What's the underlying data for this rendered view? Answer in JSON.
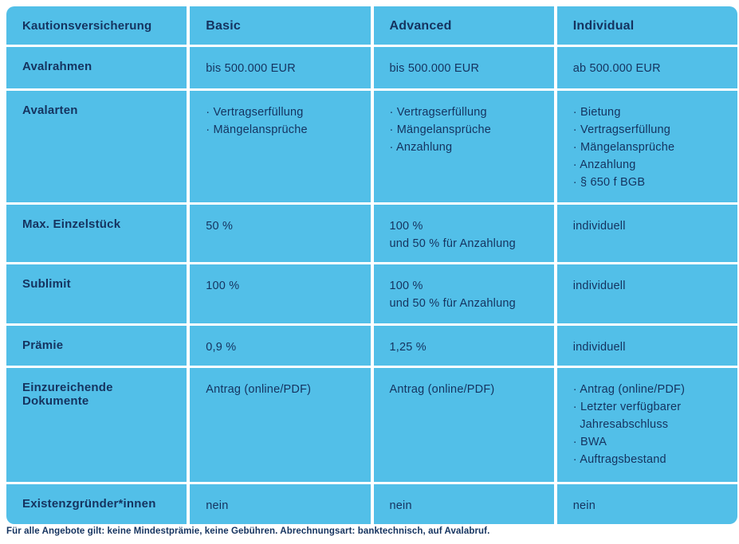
{
  "theme": {
    "cell_blue": "#52BFE8",
    "text_navy": "#15335F",
    "page_bg": "#FFFFFF"
  },
  "table": {
    "header": [
      "Kautionsversicherung",
      "Basic",
      "Advanced",
      "Individual"
    ],
    "rows": [
      {
        "label": "Avalrahmen",
        "basic": [
          "bis 500.000 EUR"
        ],
        "advanced": [
          "bis 500.000 EUR"
        ],
        "individual": [
          "ab 500.000 EUR"
        ]
      },
      {
        "label": "Avalarten",
        "basic": [
          "· Vertragserfüllung",
          "· Mängelansprüche"
        ],
        "advanced": [
          "· Vertragserfüllung",
          "· Mängelansprüche",
          "· Anzahlung"
        ],
        "individual": [
          "· Bietung",
          "· Vertragserfüllung",
          "· Mängelansprüche",
          "· Anzahlung",
          "· § 650 f BGB"
        ]
      },
      {
        "label": "Max. Einzelstück",
        "basic": [
          "50 %"
        ],
        "advanced": [
          "100 %",
          "und 50 % für Anzahlung"
        ],
        "individual": [
          "individuell"
        ]
      },
      {
        "label": "Sublimit",
        "basic": [
          "100 %"
        ],
        "advanced": [
          "100 %",
          "und 50 % für Anzahlung"
        ],
        "individual": [
          "individuell"
        ]
      },
      {
        "label": "Prämie",
        "basic": [
          "0,9 %"
        ],
        "advanced": [
          "1,25 %"
        ],
        "individual": [
          "individuell"
        ]
      },
      {
        "label": "Einzureichende Dokumente",
        "basic": [
          "Antrag (online/PDF)"
        ],
        "advanced": [
          "Antrag (online/PDF)"
        ],
        "individual": [
          "· Antrag (online/PDF)",
          "· Letzter verfügbarer",
          "  Jahresabschluss",
          "· BWA",
          "· Auftragsbestand"
        ]
      },
      {
        "label": "Existenzgründer*innen",
        "basic": [
          "nein"
        ],
        "advanced": [
          "nein"
        ],
        "individual": [
          "nein"
        ]
      }
    ]
  },
  "footer": {
    "note": "Für alle Angebote gilt: keine Mindestprämie, keine Gebühren. Abrechnungsart: banktechnisch, auf Avalabruf."
  }
}
